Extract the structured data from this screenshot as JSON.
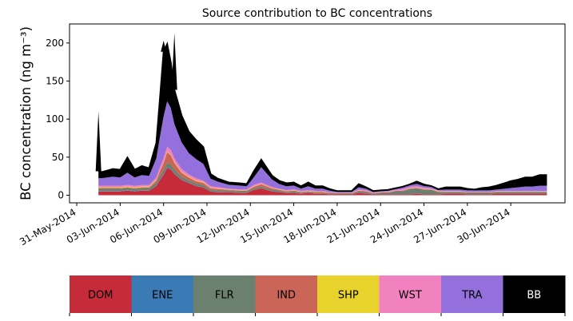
{
  "chart_data": {
    "type": "area",
    "stacked": true,
    "title": "Source contribution to BC concentrations",
    "xlabel": "",
    "ylabel": "BC concentration (ng m⁻³)",
    "ylim": [
      -10,
      225
    ],
    "yticks": [
      0,
      50,
      100,
      150,
      200
    ],
    "xlim": [
      "2014-05-30T12:00",
      "2014-07-03T18:00"
    ],
    "xticks": [
      "2014-05-31",
      "2014-06-03",
      "2014-06-06",
      "2014-06-09",
      "2014-06-12",
      "2014-06-15",
      "2014-06-18",
      "2014-06-21",
      "2014-06-24",
      "2014-06-27",
      "2014-06-30"
    ],
    "xtick_labels": [
      "31-May-2014",
      "03-Jun-2014",
      "06-Jun-2014",
      "09-Jun-2014",
      "12-Jun-2014",
      "15-Jun-2014",
      "18-Jun-2014",
      "21-Jun-2014",
      "24-Jun-2014",
      "27-Jun-2014",
      "30-Jun-2014"
    ],
    "x": [
      "2014-06-01T12:00",
      "2014-06-01T18:00",
      "2014-06-02T12:00",
      "2014-06-03T00:00",
      "2014-06-03T12:00",
      "2014-06-04T00:00",
      "2014-06-04T12:00",
      "2014-06-05T00:00",
      "2014-06-05T12:00",
      "2014-06-05T18:00",
      "2014-06-06T00:00",
      "2014-06-06T06:00",
      "2014-06-06T12:00",
      "2014-06-06T18:00",
      "2014-06-07T06:00",
      "2014-06-07T18:00",
      "2014-06-08T06:00",
      "2014-06-08T18:00",
      "2014-06-09T06:00",
      "2014-06-09T18:00",
      "2014-06-10T12:00",
      "2014-06-11T06:00",
      "2014-06-11T18:00",
      "2014-06-12T06:00",
      "2014-06-12T18:00",
      "2014-06-13T12:00",
      "2014-06-14T00:00",
      "2014-06-14T12:00",
      "2014-06-15T00:00",
      "2014-06-15T12:00",
      "2014-06-16T00:00",
      "2014-06-16T12:00",
      "2014-06-17T00:00",
      "2014-06-17T12:00",
      "2014-06-18T00:00",
      "2014-06-18T12:00",
      "2014-06-19T00:00",
      "2014-06-19T12:00",
      "2014-06-20T00:00",
      "2014-06-20T12:00",
      "2014-06-21T00:00",
      "2014-06-21T12:00",
      "2014-06-22T00:00",
      "2014-06-22T12:00",
      "2014-06-23T00:00",
      "2014-06-23T12:00",
      "2014-06-24T00:00",
      "2014-06-24T12:00",
      "2014-06-25T00:00",
      "2014-06-25T12:00",
      "2014-06-26T00:00",
      "2014-06-26T12:00",
      "2014-06-27T00:00",
      "2014-06-27T12:00",
      "2014-06-28T00:00",
      "2014-06-28T12:00",
      "2014-06-29T00:00",
      "2014-06-29T12:00",
      "2014-06-30T00:00",
      "2014-06-30T12:00",
      "2014-07-01T00:00",
      "2014-07-01T12:00",
      "2014-07-02T00:00",
      "2014-07-02T12:00"
    ],
    "series": [
      {
        "name": "DOM",
        "color": "#c62b3a",
        "values": [
          5,
          5,
          5,
          5,
          6,
          5,
          6,
          6,
          12,
          20,
          27,
          36,
          34,
          28,
          20,
          16,
          12,
          10,
          5,
          4,
          4,
          3,
          3,
          7,
          9,
          5,
          4,
          3,
          3,
          2,
          3,
          2,
          2,
          1,
          1,
          1,
          1,
          3,
          2,
          1,
          1,
          1,
          1,
          1,
          1,
          2,
          1,
          1,
          1,
          2,
          2,
          2,
          1,
          1,
          1,
          1,
          2,
          2,
          2,
          2,
          2,
          2,
          2,
          2
        ]
      },
      {
        "name": "ENE",
        "color": "#3a7ab5",
        "values": [
          0.4,
          0.4,
          0.4,
          0.4,
          0.5,
          0.4,
          0.4,
          0.4,
          0.5,
          0.6,
          0.6,
          0.6,
          0.6,
          0.5,
          0.5,
          0.4,
          0.4,
          0.3,
          0.3,
          0.3,
          0.2,
          0.2,
          0.2,
          0.3,
          0.3,
          0.2,
          0.2,
          0.2,
          0.2,
          0.2,
          0.2,
          0.2,
          0.2,
          0.1,
          0.1,
          0.1,
          0.1,
          0.2,
          0.2,
          0.1,
          0.1,
          0.1,
          0.2,
          0.2,
          0.2,
          0.2,
          0.2,
          0.2,
          0.1,
          0.1,
          0.1,
          0.1,
          0.1,
          0.1,
          0.1,
          0.1,
          0.1,
          0.1,
          0.1,
          0.1,
          0.1,
          0.1,
          0.1,
          0.1
        ]
      },
      {
        "name": "FLR",
        "color": "#6b806e",
        "values": [
          3,
          3,
          3,
          3,
          3,
          3,
          3,
          3,
          4,
          5,
          5,
          6,
          6,
          5,
          4,
          3,
          3,
          3,
          2,
          2,
          2,
          2,
          2,
          2,
          2,
          2,
          2,
          1,
          2,
          1,
          1,
          1,
          1,
          1,
          1,
          1,
          1,
          2,
          2,
          1,
          2,
          2,
          4,
          4,
          7,
          7,
          6,
          6,
          3,
          2,
          2,
          2,
          2,
          2,
          2,
          2,
          2,
          2,
          2,
          2,
          2,
          2,
          2,
          2
        ]
      },
      {
        "name": "IND",
        "color": "#cb6558",
        "values": [
          1,
          1,
          1,
          1,
          1,
          1,
          1,
          1,
          3,
          6,
          10,
          14,
          12,
          9,
          5,
          4,
          3,
          3,
          2,
          2,
          1,
          1,
          1,
          2,
          3,
          2,
          1,
          1,
          1,
          1,
          1,
          1,
          1,
          1,
          0.5,
          0.5,
          0.5,
          1,
          1,
          0.5,
          0.5,
          0.5,
          0.5,
          0.5,
          0.5,
          0.5,
          0.5,
          0.5,
          0.5,
          0.5,
          0.5,
          0.5,
          0.5,
          0.5,
          0.5,
          0.5,
          0.5,
          0.5,
          0.5,
          0.5,
          0.5,
          0.5,
          0.5,
          0.5
        ]
      },
      {
        "name": "SHP",
        "color": "#e8d32c",
        "values": [
          1,
          1,
          1,
          1,
          1,
          1,
          1,
          1,
          1,
          1,
          1,
          1,
          1,
          1,
          1,
          1,
          1,
          1,
          0.5,
          0.5,
          0.5,
          0.5,
          0.5,
          0.5,
          0.5,
          0.5,
          0.5,
          0.5,
          0.5,
          0.5,
          0.5,
          0.5,
          0.5,
          0.3,
          0.3,
          0.3,
          0.3,
          0.3,
          0.3,
          0.3,
          0.3,
          0.3,
          0.3,
          0.3,
          0.3,
          0.3,
          0.3,
          0.3,
          0.3,
          0.3,
          0.3,
          0.3,
          0.3,
          0.3,
          0.3,
          0.3,
          0.3,
          0.3,
          0.3,
          0.3,
          0.3,
          0.3,
          0.3,
          0.3
        ]
      },
      {
        "name": "WST",
        "color": "#f282bf",
        "values": [
          2,
          2,
          2,
          2,
          2,
          2,
          2,
          2,
          3,
          4,
          5,
          6,
          6,
          5,
          4,
          3,
          3,
          2,
          2,
          2,
          1,
          1,
          1,
          2,
          2,
          1,
          1,
          1,
          1,
          1,
          1,
          1,
          1,
          0.5,
          0.5,
          0.5,
          0.5,
          1,
          1,
          0.5,
          0.5,
          1,
          1,
          2,
          2,
          2,
          2,
          1,
          1,
          0.5,
          0.5,
          0.5,
          0.5,
          0.5,
          0.5,
          0.5,
          0.5,
          0.5,
          0.5,
          0.5,
          0.5,
          0.5,
          0.5,
          0.5
        ]
      },
      {
        "name": "TRA",
        "color": "#9370db",
        "values": [
          10,
          10,
          12,
          11,
          16,
          11,
          13,
          12,
          25,
          40,
          55,
          60,
          55,
          45,
          35,
          28,
          25,
          22,
          10,
          7,
          5,
          5,
          4,
          10,
          20,
          10,
          6,
          5,
          5,
          3,
          5,
          3,
          3,
          2,
          1,
          1,
          1,
          3,
          2,
          1,
          1,
          1,
          1,
          2,
          2,
          3,
          2,
          2,
          1,
          2,
          2,
          2,
          2,
          2,
          2,
          2,
          2,
          3,
          4,
          5,
          6,
          6,
          7,
          7
        ]
      },
      {
        "name": "BB",
        "color": "#000000",
        "values": [
          9,
          8,
          10,
          10,
          20,
          10,
          12,
          10,
          20,
          50,
          85,
          75,
          60,
          45,
          35,
          28,
          25,
          22,
          6,
          4,
          3,
          3,
          3,
          8,
          10,
          5,
          4,
          4,
          4,
          3,
          5,
          3,
          3,
          2,
          1,
          1,
          1,
          4,
          2,
          1,
          1,
          1,
          1,
          1,
          1,
          3,
          2,
          1,
          1,
          3,
          3,
          3,
          2,
          1,
          3,
          4,
          5,
          7,
          9,
          10,
          12,
          12,
          14,
          14
        ]
      }
    ],
    "peak_spikes": [
      {
        "x": "2014-06-01T12:00",
        "y": 110
      },
      {
        "x": "2014-06-06T00:00",
        "y": 203
      },
      {
        "x": "2014-06-06T18:00",
        "y": 213
      }
    ],
    "outline_color": "#000000",
    "grid": false,
    "legend": "colorbar-bottom"
  }
}
